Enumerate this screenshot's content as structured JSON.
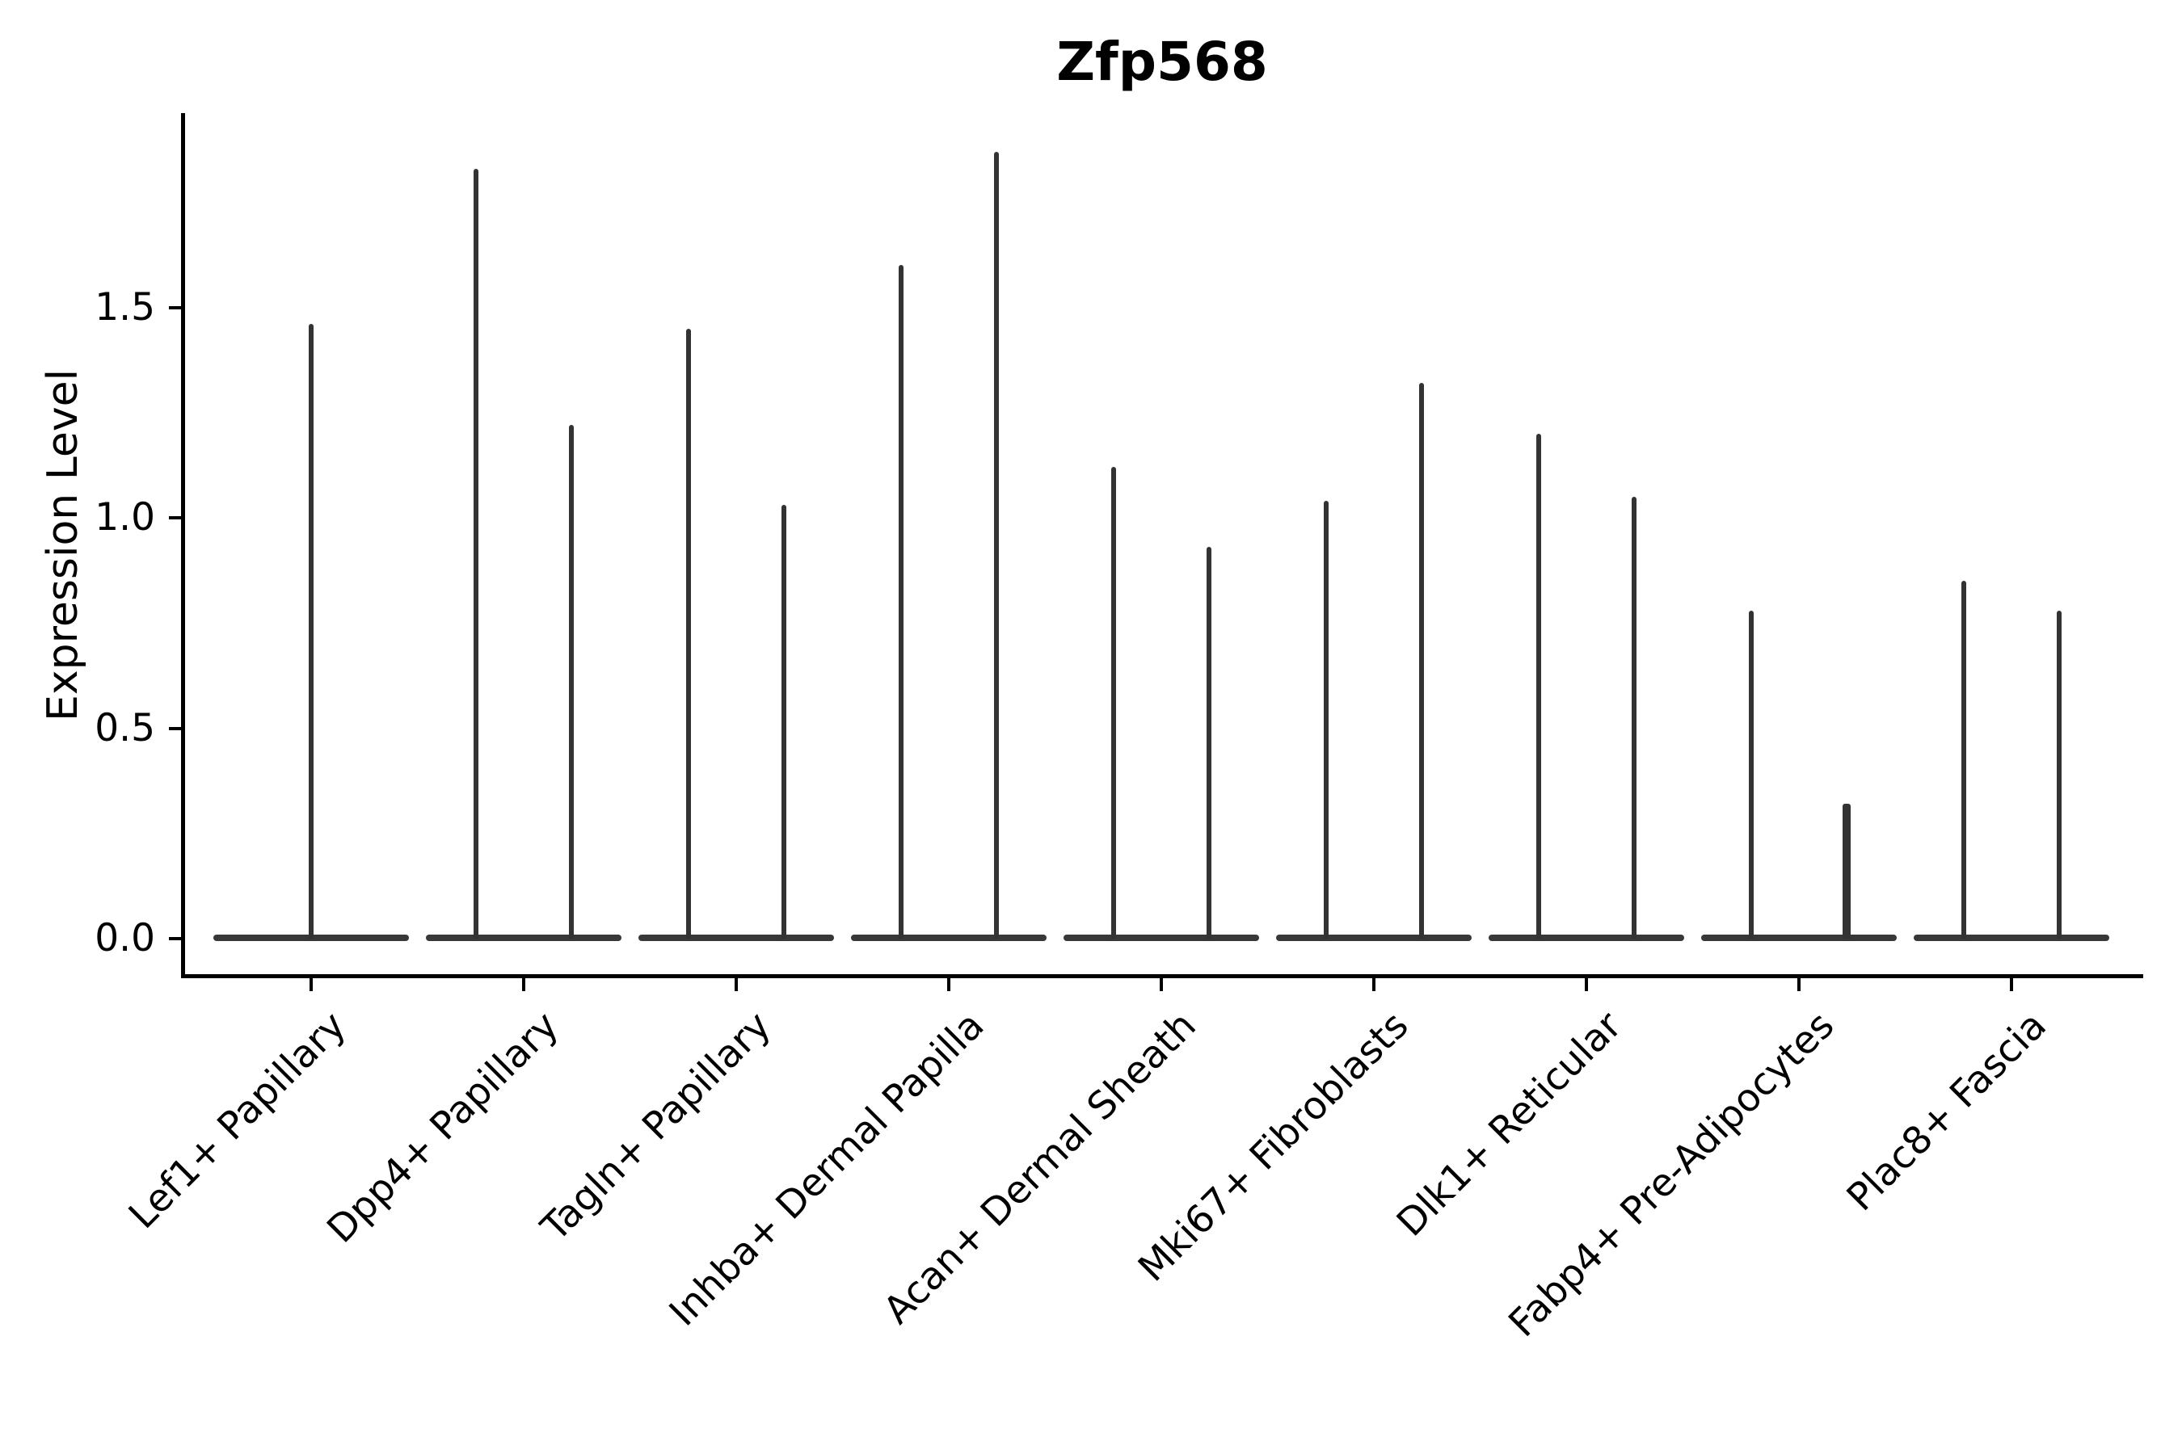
{
  "figure": {
    "title": "Zfp568",
    "y_axis": {
      "label": "Expression Level",
      "tick_labels": [
        "0.0",
        "0.5",
        "1.0",
        "1.5"
      ]
    }
  },
  "chart_data": {
    "type": "violin",
    "title": "Zfp568",
    "xlabel": "",
    "ylabel": "Expression Level",
    "ylim": [
      -0.09,
      1.96
    ],
    "yticks": [
      0.0,
      0.5,
      1.0,
      1.5
    ],
    "grid": false,
    "legend": "none",
    "background": "#ffffff",
    "violin_color": "#333333",
    "violin_base_color": "#383838",
    "axis_color": "#000000",
    "categories": [
      "Lef1+ Papillary",
      "Dpp4+ Papillary",
      "Tagln+ Papillary",
      "Inhba+ Dermal Papilla",
      "Acan+ Dermal Sheath",
      "Mki67+ Fibroblasts",
      "Dlk1+ Reticular",
      "Fabp4+ Pre-Adipocytes",
      "Plac8+ Fascia"
    ],
    "series": [
      {
        "category": "Lef1+ Papillary",
        "violins": [
          {
            "peak_expression": 1.46,
            "rel_width": 1
          }
        ]
      },
      {
        "category": "Dpp4+ Papillary",
        "violins": [
          {
            "peak_expression": 1.83,
            "rel_width": 1
          },
          {
            "peak_expression": 1.22,
            "rel_width": 1
          }
        ]
      },
      {
        "category": "Tagln+ Papillary",
        "violins": [
          {
            "peak_expression": 1.45,
            "rel_width": 1
          },
          {
            "peak_expression": 1.03,
            "rel_width": 1
          }
        ]
      },
      {
        "category": "Inhba+ Dermal Papilla",
        "violins": [
          {
            "peak_expression": 1.6,
            "rel_width": 1
          },
          {
            "peak_expression": 1.87,
            "rel_width": 1
          }
        ]
      },
      {
        "category": "Acan+ Dermal Sheath",
        "violins": [
          {
            "peak_expression": 1.12,
            "rel_width": 1
          },
          {
            "peak_expression": 0.93,
            "rel_width": 1
          }
        ]
      },
      {
        "category": "Mki67+ Fibroblasts",
        "violins": [
          {
            "peak_expression": 1.04,
            "rel_width": 1
          },
          {
            "peak_expression": 1.32,
            "rel_width": 1
          }
        ]
      },
      {
        "category": "Dlk1+ Reticular",
        "violins": [
          {
            "peak_expression": 1.2,
            "rel_width": 1
          },
          {
            "peak_expression": 1.05,
            "rel_width": 1
          }
        ]
      },
      {
        "category": "Fabp4+ Pre-Adipocytes",
        "violins": [
          {
            "peak_expression": 0.78,
            "rel_width": 1
          },
          {
            "peak_expression": 0.32,
            "rel_width": 1.6
          }
        ]
      },
      {
        "category": "Plac8+ Fascia",
        "violins": [
          {
            "peak_expression": 0.85,
            "rel_width": 1
          },
          {
            "peak_expression": 0.78,
            "rel_width": 1
          }
        ]
      }
    ],
    "baseline_value": 0.0
  }
}
